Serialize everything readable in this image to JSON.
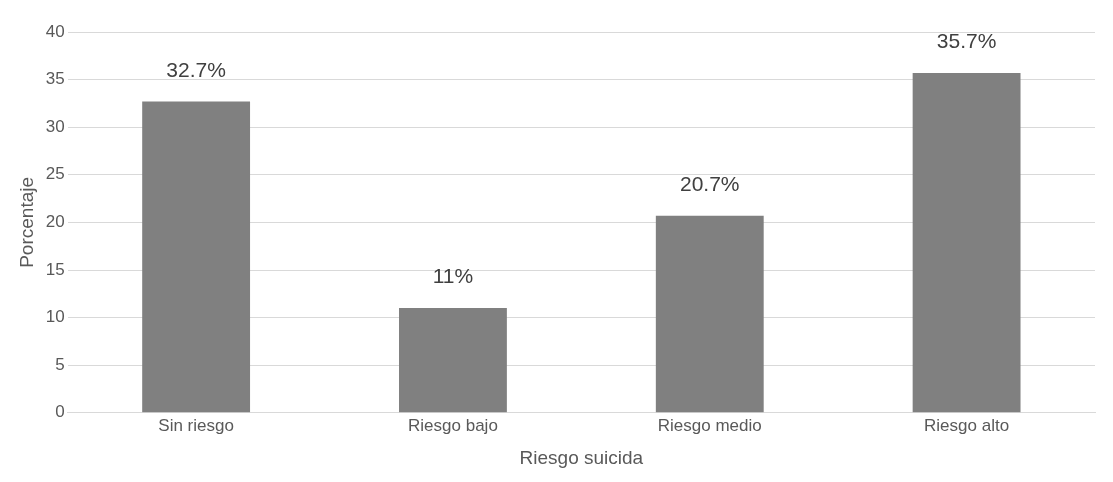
{
  "chart_data": {
    "type": "bar",
    "xlabel": "Riesgo suicida",
    "ylabel": "Porcentaje",
    "categories": [
      "Sin riesgo",
      "Riesgo bajo",
      "Riesgo medio",
      "Riesgo alto"
    ],
    "values": [
      32.7,
      11,
      20.7,
      35.7
    ],
    "value_labels": [
      "32.7%",
      "11%",
      "20.7%",
      "35.7%"
    ],
    "color": "#808080",
    "ylim": [
      0,
      40
    ],
    "yticks": [
      0,
      5,
      10,
      15,
      20,
      25,
      30,
      35,
      40
    ],
    "grid": "y",
    "legend": false
  }
}
